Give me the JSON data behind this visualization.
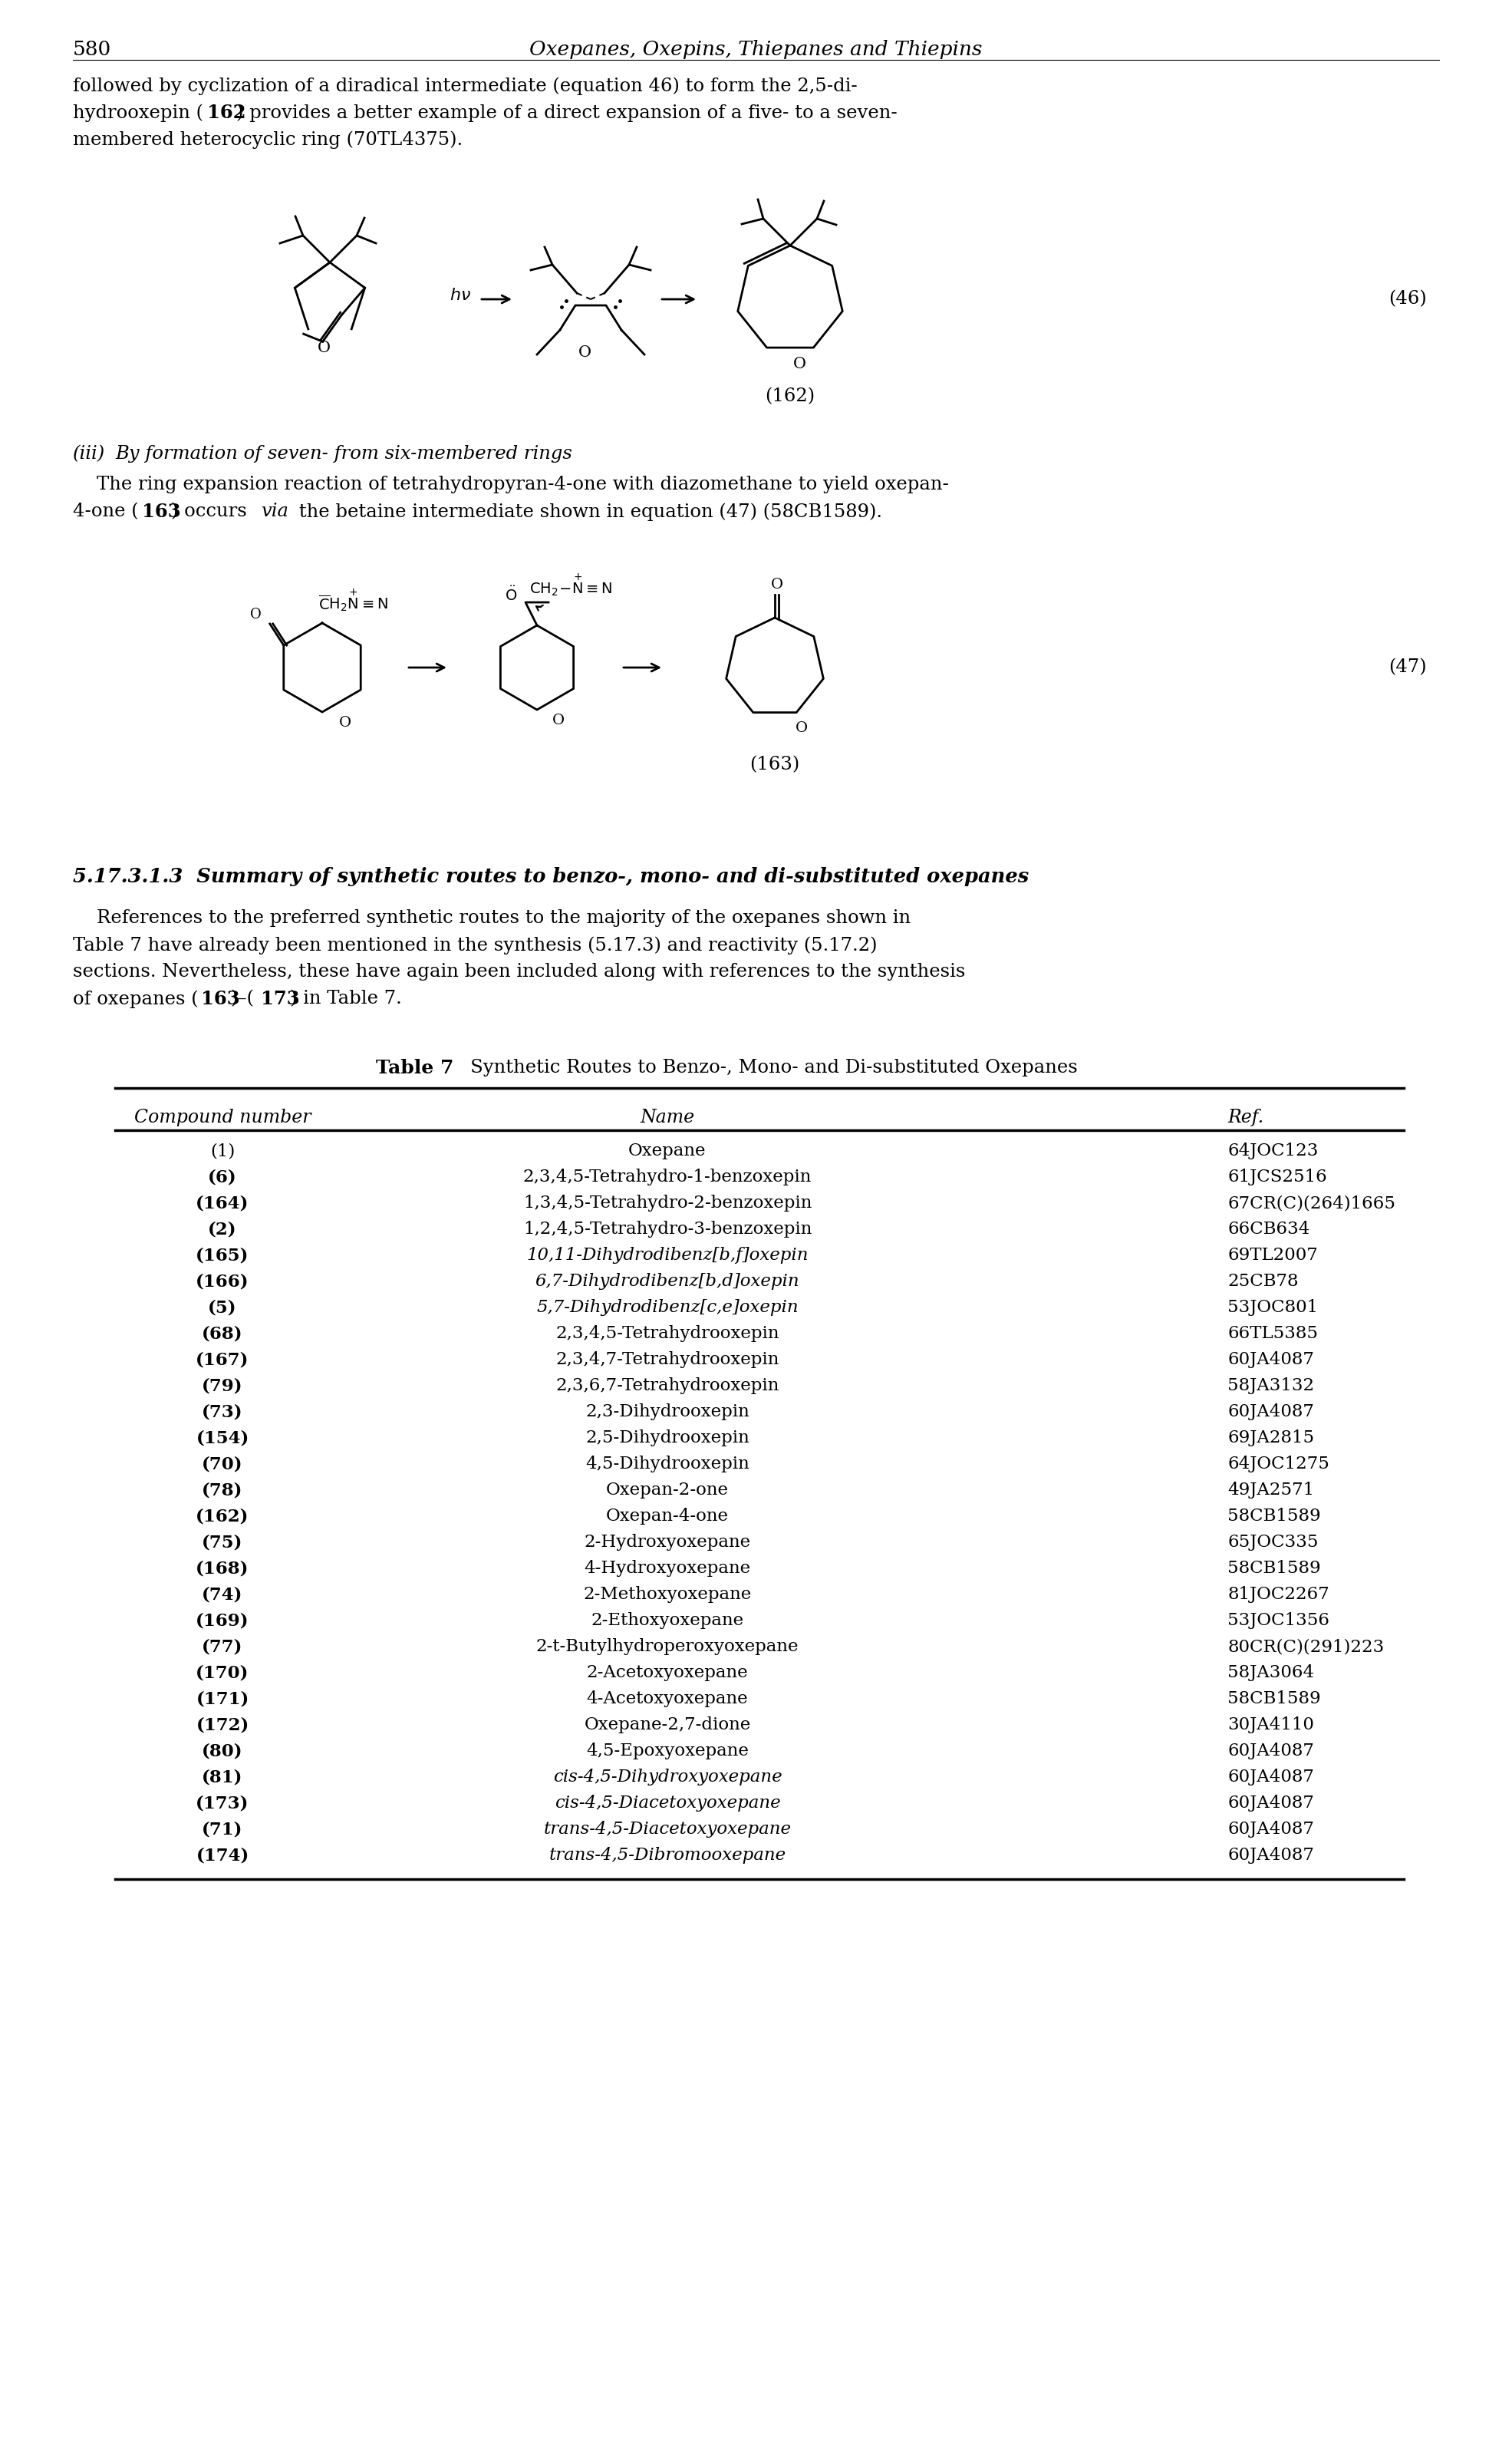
{
  "page_number": "580",
  "header_title": "Oxepanes, Oxepins, Thiepanes and Thiepins",
  "table_title": "Table 7",
  "table_subtitle": "Synthetic Routes to Benzo-, Mono- and Di-substituted Oxepanes",
  "table_headers": [
    "Compound number",
    "Name",
    "Ref."
  ],
  "table_rows": [
    [
      "(1)",
      "Oxepane",
      "64JOC123",
      false,
      false
    ],
    [
      "(6)",
      "2,3,4,5-Tetrahydro-1-benzoxepin",
      "61JCS2516",
      true,
      false
    ],
    [
      "(164)",
      "1,3,4,5-Tetrahydro-2-benzoxepin",
      "67CR(C)(264)1665",
      true,
      false
    ],
    [
      "(2)",
      "1,2,4,5-Tetrahydro-3-benzoxepin",
      "66CB634",
      true,
      false
    ],
    [
      "(165)",
      "10,11-Dihydrodibenz[b,f]oxepin",
      "69TL2007",
      true,
      true
    ],
    [
      "(166)",
      "6,7-Dihydrodibenz[b,d]oxepin",
      "25CB78",
      true,
      true
    ],
    [
      "(5)",
      "5,7-Dihydrodibenz[c,e]oxepin",
      "53JOC801",
      true,
      true
    ],
    [
      "(68)",
      "2,3,4,5-Tetrahydrooxepin",
      "66TL5385",
      true,
      false
    ],
    [
      "(167)",
      "2,3,4,7-Tetrahydrooxepin",
      "60JA4087",
      true,
      false
    ],
    [
      "(79)",
      "2,3,6,7-Tetrahydrooxepin",
      "58JA3132",
      true,
      false
    ],
    [
      "(73)",
      "2,3-Dihydrooxepin",
      "60JA4087",
      true,
      false
    ],
    [
      "(154)",
      "2,5-Dihydrooxepin",
      "69JA2815",
      true,
      false
    ],
    [
      "(70)",
      "4,5-Dihydrooxepin",
      "64JOC1275",
      true,
      false
    ],
    [
      "(78)",
      "Oxepan-2-one",
      "49JA2571",
      true,
      false
    ],
    [
      "(162)",
      "Oxepan-4-one",
      "58CB1589",
      true,
      false
    ],
    [
      "(75)",
      "2-Hydroxyoxepane",
      "65JOC335",
      true,
      false
    ],
    [
      "(168)",
      "4-Hydroxyoxepane",
      "58CB1589",
      true,
      false
    ],
    [
      "(74)",
      "2-Methoxyoxepane",
      "81JOC2267",
      true,
      false
    ],
    [
      "(169)",
      "2-Ethoxyoxepane",
      "53JOC1356",
      true,
      false
    ],
    [
      "(77)",
      "2-t-Butylhydroperoxyoxepane",
      "80CR(C)(291)223",
      true,
      false
    ],
    [
      "(170)",
      "2-Acetoxyoxepane",
      "58JA3064",
      true,
      false
    ],
    [
      "(171)",
      "4-Acetoxyoxepane",
      "58CB1589",
      true,
      false
    ],
    [
      "(172)",
      "Oxepane-2,7-dione",
      "30JA4110",
      true,
      false
    ],
    [
      "(80)",
      "4,5-Epoxyoxepane",
      "60JA4087",
      true,
      false
    ],
    [
      "(81)",
      "cis-4,5-Dihydroxyoxepane",
      "60JA4087",
      true,
      true
    ],
    [
      "(173)",
      "cis-4,5-Diacetoxyoxepane",
      "60JA4087",
      true,
      true
    ],
    [
      "(71)",
      "trans-4,5-Diacetoxyoxepane",
      "60JA4087",
      true,
      true
    ],
    [
      "(174)",
      "trans-4,5-Dibromooxepane",
      "60JA4087",
      true,
      true
    ]
  ],
  "section_heading": "5.17.3.1.3  Summary of synthetic routes to benzo-, mono- and di-substituted oxepanes",
  "bg_color": "#ffffff"
}
